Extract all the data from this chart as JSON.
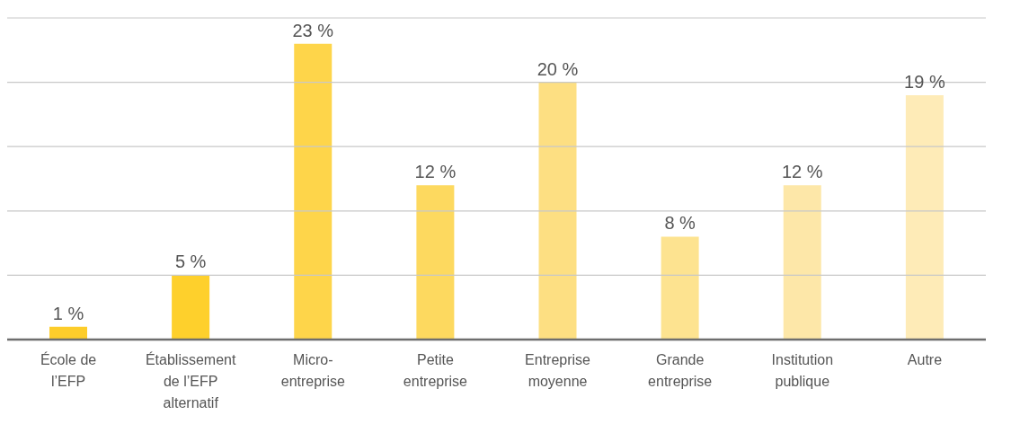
{
  "chart_data": {
    "type": "bar",
    "categories": [
      "École de l’EFP",
      "Établissement de l’EFP alternatif",
      "Micro-entreprise",
      "Petite entreprise",
      "Entreprise moyenne",
      "Grande entreprise",
      "Institution publique",
      "Autre"
    ],
    "values": [
      1,
      5,
      23,
      12,
      20,
      8,
      12,
      19
    ],
    "value_labels": [
      "1 %",
      "5 %",
      "23 %",
      "12 %",
      "20 %",
      "8 %",
      "12 %",
      "19 %"
    ],
    "colors": [
      "#fdcd2b",
      "#fed02c",
      "#fed54a",
      "#fdd95f",
      "#fddf82",
      "#fde390",
      "#fde7a8",
      "#feebb7"
    ],
    "ylim": [
      0,
      25
    ],
    "yticks": [
      {
        "value": 0,
        "label": null
      },
      {
        "value": 5,
        "label": null
      },
      {
        "value": 10,
        "label": null
      },
      {
        "value": 15,
        "label": null
      },
      {
        "value": 20,
        "label": null
      },
      {
        "value": 25,
        "label": null
      }
    ],
    "grid": "y",
    "tick_labels": "x",
    "legend": false
  }
}
